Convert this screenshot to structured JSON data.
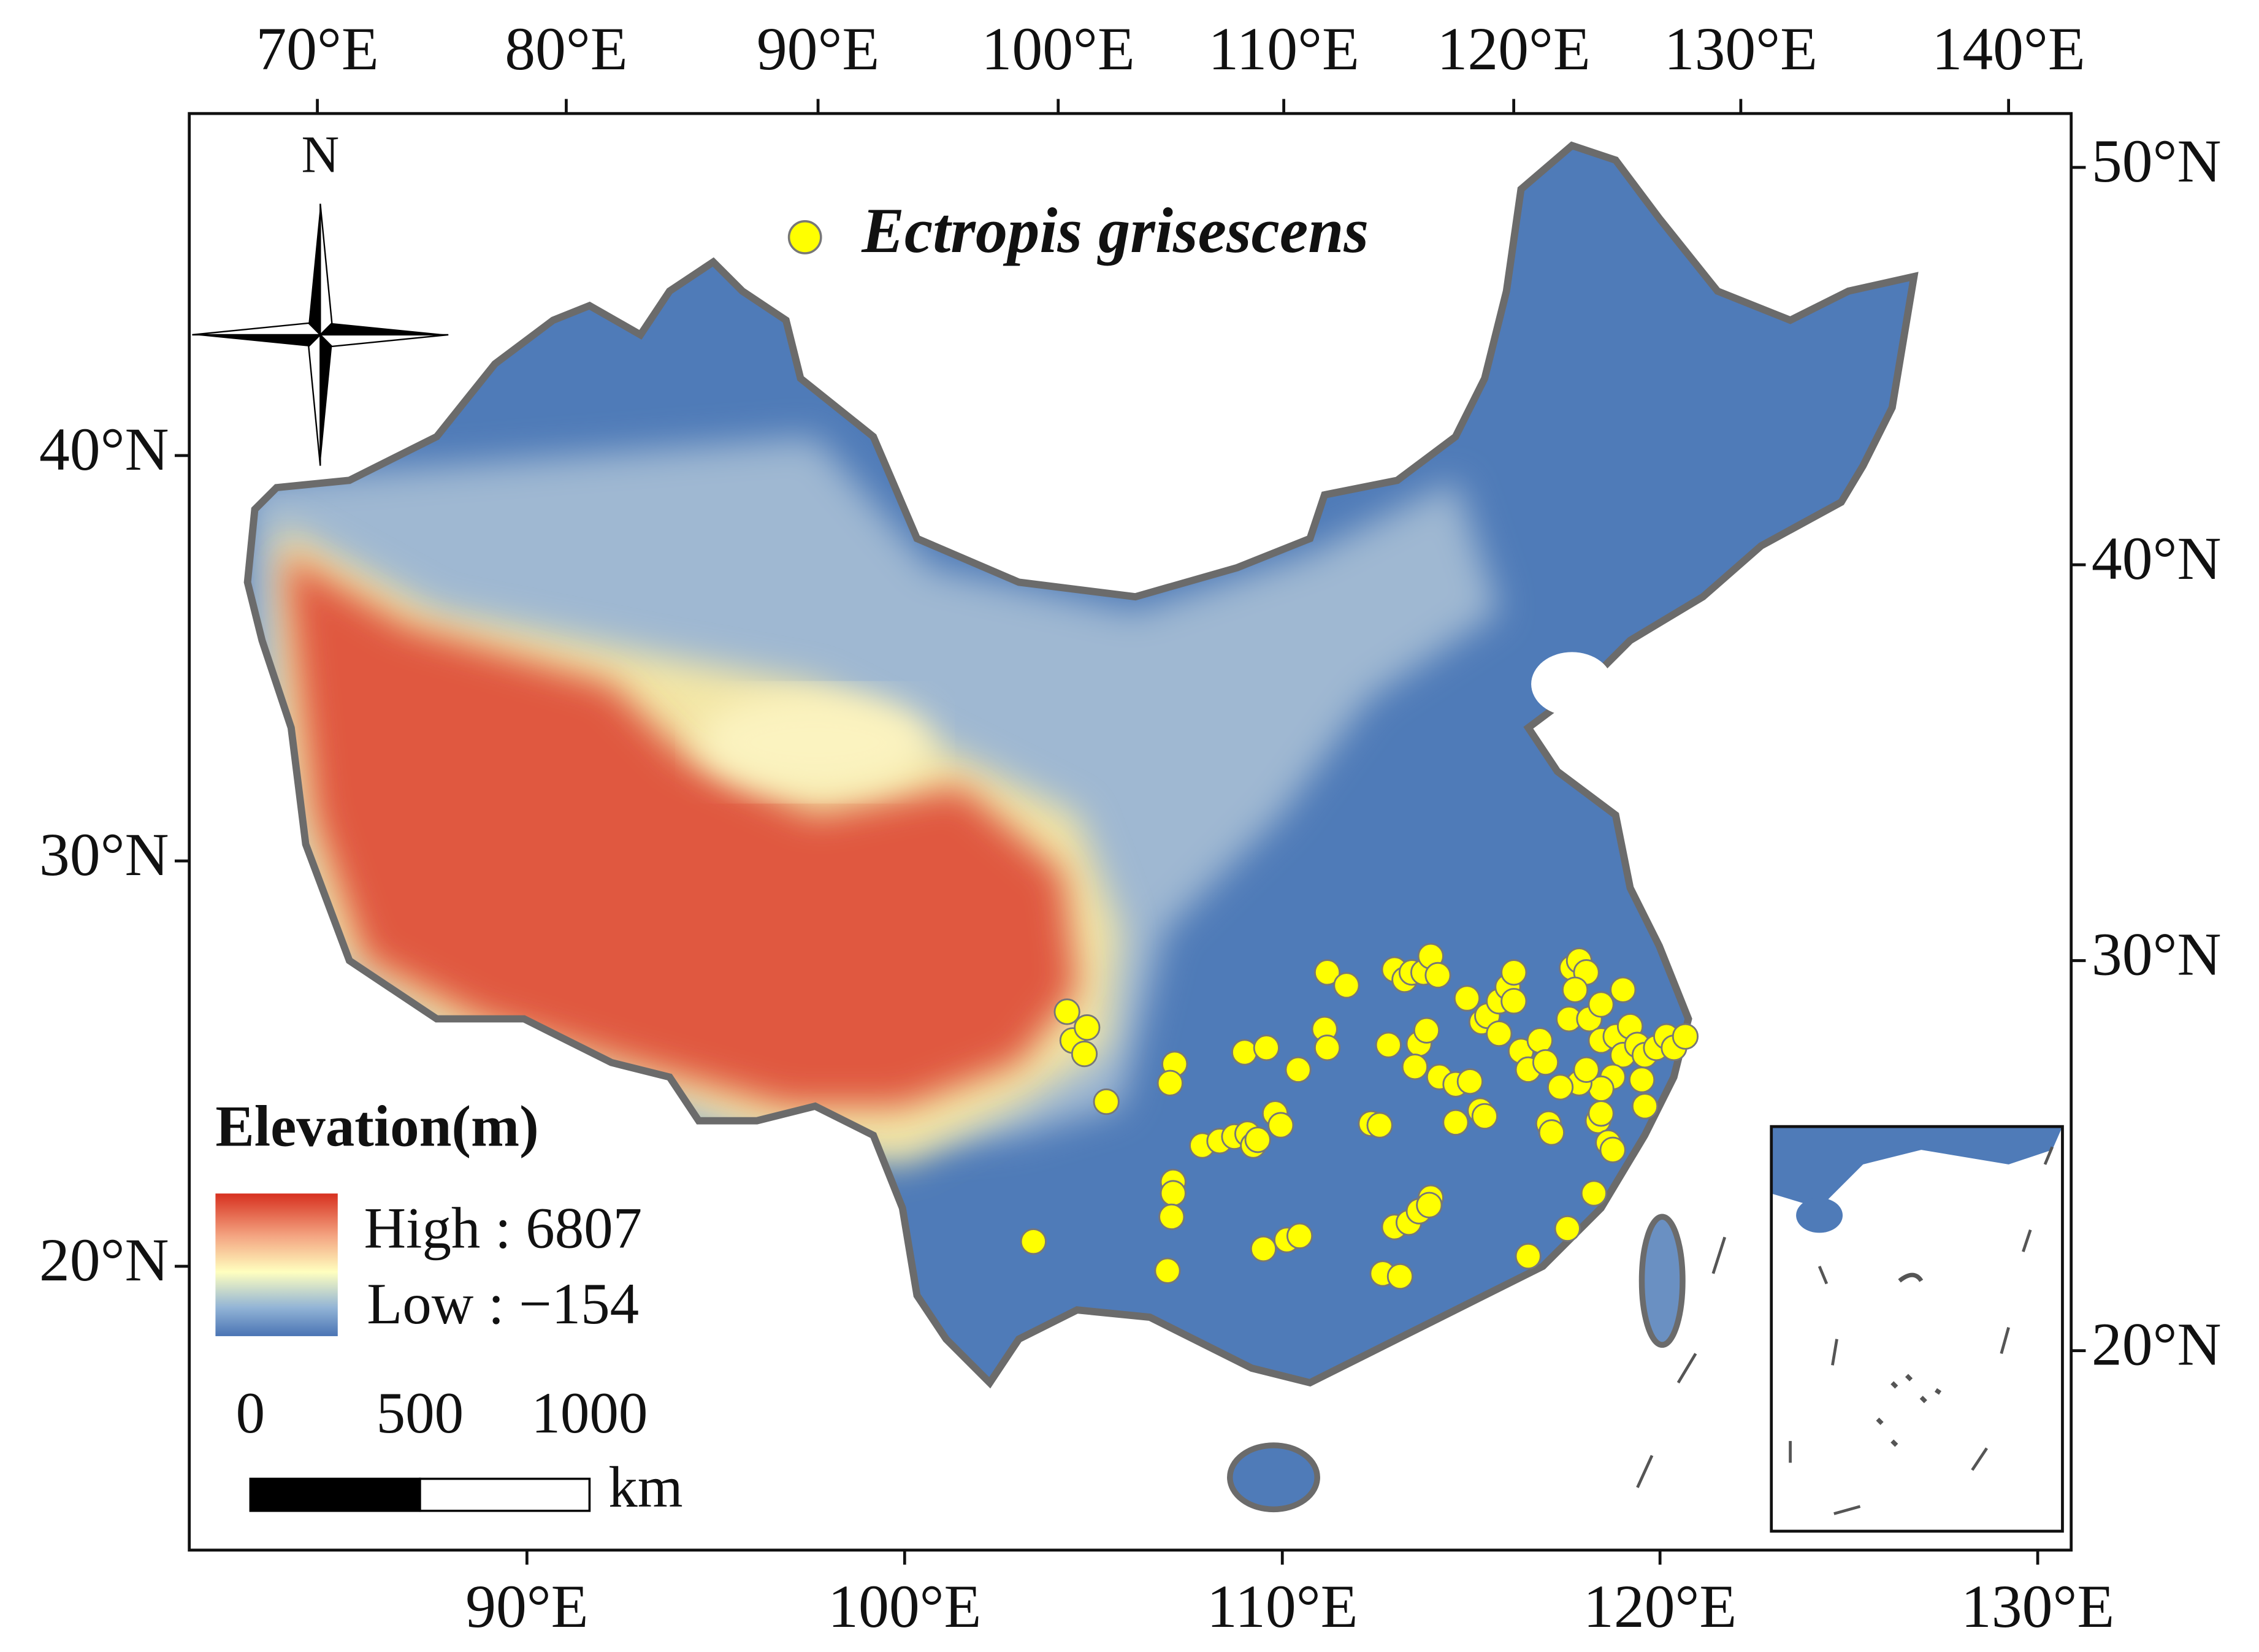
{
  "map": {
    "north": "N",
    "species": "Ectropis grisescens",
    "elevation": {
      "title": "Elevation(m)",
      "high": "High : 6807",
      "low": "Low : −154"
    },
    "scale_bar": {
      "ticks": [
        0,
        500,
        1000
      ],
      "unit": "km"
    },
    "top_ticks": [
      {
        "value": 70,
        "label": "70°E"
      },
      {
        "value": 80,
        "label": "80°E"
      },
      {
        "value": 90,
        "label": "90°E"
      },
      {
        "value": 100,
        "label": "100°E"
      },
      {
        "value": 110,
        "label": "110°E"
      },
      {
        "value": 120,
        "label": "120°E"
      },
      {
        "value": 130,
        "label": "130°E"
      },
      {
        "value": 140,
        "label": "140°E"
      }
    ],
    "bottom_ticks": [
      {
        "value": 90,
        "label": "90°E"
      },
      {
        "value": 100,
        "label": "100°E"
      },
      {
        "value": 110,
        "label": "110°E"
      },
      {
        "value": 120,
        "label": "120°E"
      },
      {
        "value": 130,
        "label": "130°E"
      }
    ],
    "left_ticks": [
      {
        "value": 40,
        "label": "40°N"
      },
      {
        "value": 30,
        "label": "30°N"
      },
      {
        "value": 20,
        "label": "20°N"
      }
    ],
    "right_ticks": [
      {
        "value": 50,
        "label": "50°N"
      },
      {
        "value": 40,
        "label": "40°N"
      },
      {
        "value": 30,
        "label": "30°N"
      },
      {
        "value": 20,
        "label": "20°N"
      }
    ],
    "points": [
      [
        103.41,
        20.61
      ],
      [
        104.3,
        26.28
      ],
      [
        104.45,
        25.57
      ],
      [
        104.76,
        25.24
      ],
      [
        104.83,
        25.89
      ],
      [
        105.34,
        24.06
      ],
      [
        107.15,
        24.99
      ],
      [
        107.03,
        24.52
      ],
      [
        107.11,
        22.08
      ],
      [
        107.11,
        21.8
      ],
      [
        107.07,
        21.22
      ],
      [
        106.96,
        19.89
      ],
      [
        107.88,
        22.98
      ],
      [
        108.34,
        23.09
      ],
      [
        108.73,
        23.2
      ],
      [
        109.08,
        23.27
      ],
      [
        109.23,
        22.98
      ],
      [
        109.35,
        23.12
      ],
      [
        109.0,
        25.28
      ],
      [
        109.58,
        25.39
      ],
      [
        109.81,
        23.77
      ],
      [
        109.96,
        23.48
      ],
      [
        110.42,
        24.85
      ],
      [
        109.5,
        20.43
      ],
      [
        110.12,
        20.65
      ],
      [
        110.46,
        20.75
      ],
      [
        111.12,
        25.85
      ],
      [
        111.19,
        25.39
      ],
      [
        111.19,
        27.25
      ],
      [
        111.7,
        26.93
      ],
      [
        112.35,
        23.52
      ],
      [
        112.58,
        23.48
      ],
      [
        112.66,
        19.82
      ],
      [
        113.12,
        19.75
      ],
      [
        112.97,
        20.97
      ],
      [
        113.35,
        21.08
      ],
      [
        113.62,
        21.36
      ],
      [
        113.93,
        21.69
      ],
      [
        113.89,
        21.51
      ],
      [
        112.97,
        27.32
      ],
      [
        113.24,
        27.07
      ],
      [
        113.43,
        27.25
      ],
      [
        113.74,
        27.25
      ],
      [
        113.93,
        27.65
      ],
      [
        114.12,
        27.18
      ],
      [
        112.81,
        25.46
      ],
      [
        113.62,
        25.49
      ],
      [
        113.51,
        24.92
      ],
      [
        113.82,
        25.82
      ],
      [
        114.16,
        24.67
      ],
      [
        114.59,
        24.49
      ],
      [
        114.97,
        24.56
      ],
      [
        114.59,
        23.55
      ],
      [
        115.24,
        23.84
      ],
      [
        115.36,
        23.7
      ],
      [
        114.89,
        26.61
      ],
      [
        115.28,
        26.03
      ],
      [
        115.43,
        26.18
      ],
      [
        115.74,
        26.54
      ],
      [
        115.97,
        26.89
      ],
      [
        116.13,
        27.25
      ],
      [
        116.13,
        26.54
      ],
      [
        115.74,
        25.74
      ],
      [
        116.32,
        25.31
      ],
      [
        116.51,
        24.85
      ],
      [
        116.82,
        25.57
      ],
      [
        116.97,
        25.03
      ],
      [
        117.05,
        23.52
      ],
      [
        117.13,
        23.3
      ],
      [
        116.51,
        20.25
      ],
      [
        117.55,
        20.93
      ],
      [
        117.67,
        27.36
      ],
      [
        117.86,
        27.54
      ],
      [
        118.05,
        27.25
      ],
      [
        117.75,
        26.82
      ],
      [
        117.59,
        26.1
      ],
      [
        118.13,
        26.1
      ],
      [
        118.44,
        26.46
      ],
      [
        118.44,
        25.57
      ],
      [
        118.83,
        25.67
      ],
      [
        119.02,
        26.82
      ],
      [
        119.02,
        25.21
      ],
      [
        118.75,
        24.67
      ],
      [
        119.21,
        25.92
      ],
      [
        119.4,
        25.46
      ],
      [
        119.6,
        25.21
      ],
      [
        119.9,
        25.39
      ],
      [
        120.17,
        25.67
      ],
      [
        120.37,
        25.39
      ],
      [
        120.67,
        25.67
      ],
      [
        119.52,
        24.6
      ],
      [
        119.6,
        23.95
      ],
      [
        118.44,
        24.38
      ],
      [
        118.36,
        23.59
      ],
      [
        118.63,
        23.05
      ],
      [
        118.75,
        22.87
      ],
      [
        118.25,
        21.8
      ],
      [
        117.86,
        24.52
      ],
      [
        117.36,
        24.42
      ],
      [
        118.05,
        24.85
      ],
      [
        118.44,
        23.77
      ]
    ]
  }
}
